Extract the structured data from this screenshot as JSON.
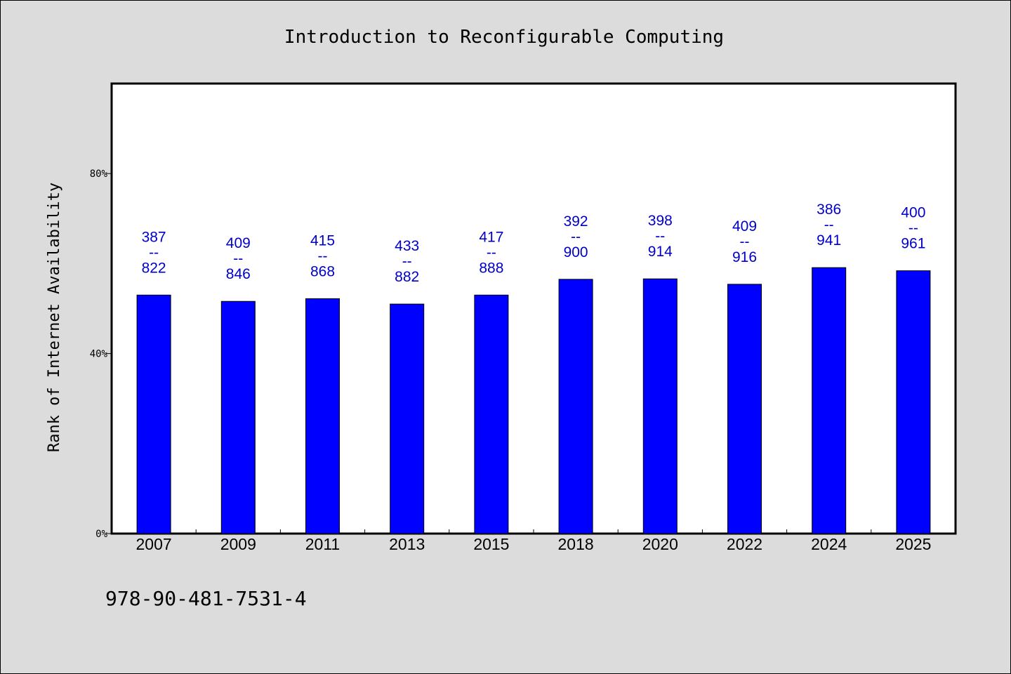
{
  "chart_data": {
    "type": "bar",
    "title": "Introduction to Reconfigurable Computing",
    "ylabel": "Rank of Internet Availability",
    "xlabel": "",
    "categories": [
      "2007",
      "2009",
      "2011",
      "2013",
      "2015",
      "2018",
      "2020",
      "2022",
      "2024",
      "2025"
    ],
    "values": [
      53,
      51.6,
      52.2,
      51,
      53,
      56.5,
      56.6,
      55.4,
      59.1,
      58.4
    ],
    "data_labels": [
      [
        "387",
        "--",
        "822"
      ],
      [
        "409",
        "--",
        "846"
      ],
      [
        "415",
        "--",
        "868"
      ],
      [
        "433",
        "--",
        "882"
      ],
      [
        "417",
        "--",
        "888"
      ],
      [
        "392",
        "--",
        "900"
      ],
      [
        "398",
        "--",
        "914"
      ],
      [
        "409",
        "--",
        "916"
      ],
      [
        "386",
        "--",
        "941"
      ],
      [
        "400",
        "--",
        "961"
      ]
    ],
    "ylim": [
      0,
      100
    ],
    "yticks": [
      {
        "value": 0,
        "label": "0%"
      },
      {
        "value": 40,
        "label": "40%"
      },
      {
        "value": 80,
        "label": "80%"
      }
    ],
    "grid": false,
    "bar_color": "#0000ff",
    "label_color": "#0000c8"
  },
  "footer": {
    "isbn": "978-90-481-7531-4"
  }
}
